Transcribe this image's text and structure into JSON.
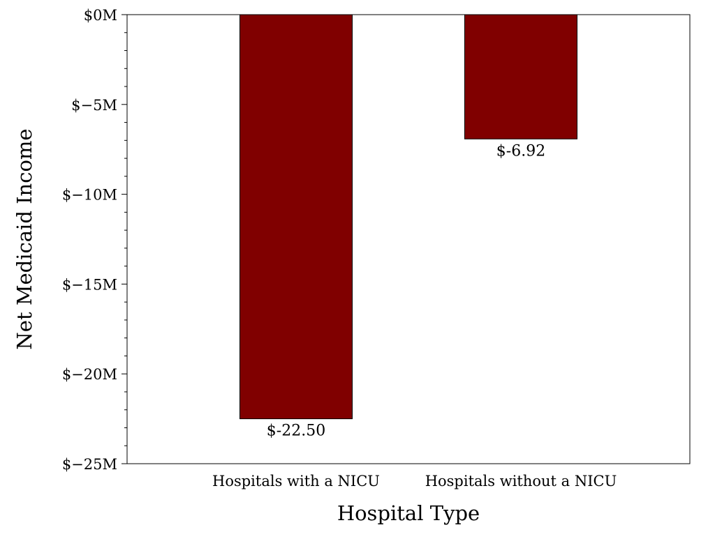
{
  "chart_data": {
    "type": "bar",
    "title": "",
    "xlabel": "Hospital Type",
    "ylabel": "Net Medicaid Income",
    "categories": [
      "Hospitals with a NICU",
      "Hospitals without a NICU"
    ],
    "values": [
      -22.5,
      -6.92
    ],
    "value_labels": [
      "$-22.50",
      "$-6.92"
    ],
    "ylim": [
      -25,
      0
    ],
    "yticks": [
      0,
      -5,
      -10,
      -15,
      -20,
      -25
    ],
    "ytick_labels": [
      "$0M",
      "$−5M",
      "$−10M",
      "$−15M",
      "$−20M",
      "$−25M"
    ],
    "y_minor_tick_step": 1,
    "grid": false,
    "legend": "none",
    "bar_color": "#800000",
    "bar_edge_color": "#000000"
  }
}
